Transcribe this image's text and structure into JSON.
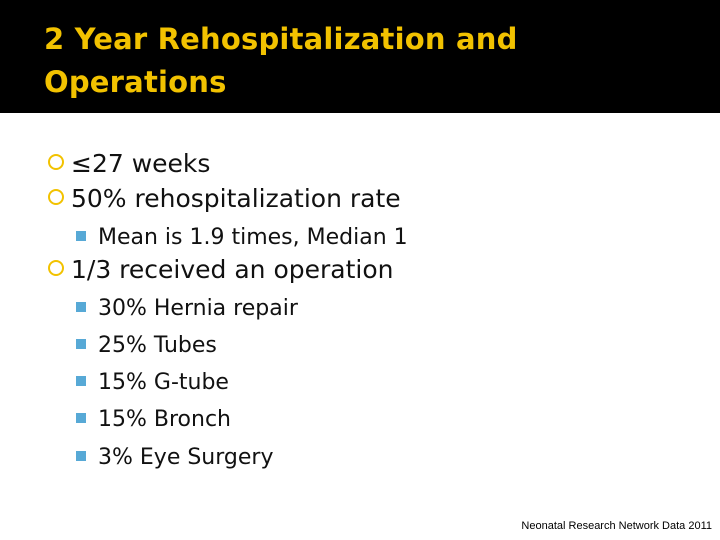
{
  "slide": {
    "title": "2 Year Rehospitalization and Operations",
    "bullets": {
      "b1": "≤27 weeks",
      "b2": "50% rehospitalization rate",
      "b2_sub1": "Mean is 1.9 times, Median 1",
      "b3": "1/3 received an operation",
      "b3_sub1": "30% Hernia repair",
      "b3_sub2": "25% Tubes",
      "b3_sub3": "15% G-tube",
      "b3_sub4": "15% Bronch",
      "b3_sub5": "3% Eye Surgery"
    },
    "footer": "Neonatal Research Network Data 2011"
  },
  "colors": {
    "title_background": "#000000",
    "title_text": "#f2c200",
    "level1_bullet": "#f2c200",
    "level2_bullet": "#57a9d6"
  }
}
